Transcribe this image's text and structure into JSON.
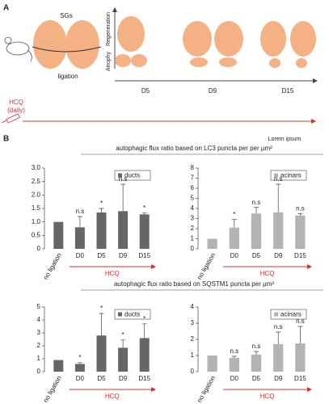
{
  "panel_a": {
    "label": "A",
    "sgs": "SGs",
    "ligation": "ligation",
    "axis_top": "Regeneration",
    "axis_bottom": "Atrophy",
    "timepoints": [
      "D5",
      "D9",
      "D15"
    ],
    "treatment": [
      "HCQ",
      "(daily)"
    ]
  },
  "panel_b": {
    "label": "B",
    "note": "Lorem ipsum",
    "row_titles": [
      "autophagic flux ratio based on LC3 puncta per per µm²",
      "autophagic flux ratio based on SQSTM1 puncta per µm²"
    ]
  },
  "chart_data": [
    {
      "type": "bar",
      "categories": [
        "no ligation",
        "D0",
        "D5",
        "D9",
        "D15"
      ],
      "series": [
        {
          "name": "ducts",
          "color": "#666666",
          "values": [
            1.0,
            0.8,
            1.35,
            1.4,
            1.28
          ],
          "errors": [
            null,
            0.4,
            0.15,
            1.0,
            0.05
          ]
        }
      ],
      "annotations": [
        null,
        "n.s",
        "*",
        "n.s",
        "*"
      ],
      "ylim": [
        0,
        3
      ],
      "yticks": [
        0,
        0.5,
        {
          "value": 1,
          "label": "1.0"
        },
        1.5,
        {
          "value": 2,
          "label": "2.0"
        },
        2.5,
        {
          "value": 3,
          "label": "3.0"
        }
      ],
      "x_annotation": "HCQ"
    },
    {
      "type": "bar",
      "categories": [
        "no ligation",
        "D0",
        "D5",
        "D9",
        "D15"
      ],
      "series": [
        {
          "name": "acinars",
          "color": "#b3b3b3",
          "values": [
            1.0,
            2.1,
            3.5,
            3.6,
            3.3
          ],
          "errors": [
            null,
            0.8,
            0.6,
            2.8,
            0.2
          ]
        }
      ],
      "annotations": [
        null,
        "*",
        "n.s",
        "n.s",
        "n.s"
      ],
      "ylim": [
        0,
        8
      ],
      "yticks": [
        0,
        1,
        2,
        3,
        4,
        5,
        6,
        7,
        8
      ],
      "x_annotation": "HCQ"
    },
    {
      "type": "bar",
      "categories": [
        "no ligation",
        "D0",
        "D5",
        "D9",
        "D15"
      ],
      "series": [
        {
          "name": "ducts",
          "color": "#666666",
          "values": [
            0.9,
            0.6,
            2.8,
            1.85,
            2.6
          ],
          "errors": [
            null,
            0.1,
            1.7,
            0.6,
            1.1
          ]
        }
      ],
      "annotations": [
        null,
        "*",
        "*",
        "*",
        "*"
      ],
      "ylim": [
        0,
        5
      ],
      "yticks": [
        0,
        1,
        2,
        3,
        4,
        5
      ],
      "x_annotation": "HCQ"
    },
    {
      "type": "bar",
      "categories": [
        "no ligation",
        "D0",
        "D5",
        "D9",
        "D15"
      ],
      "series": [
        {
          "name": "acinars",
          "color": "#b3b3b3",
          "values": [
            1.0,
            0.85,
            1.05,
            1.7,
            1.75
          ],
          "errors": [
            null,
            0.1,
            0.2,
            0.75,
            1.05
          ]
        }
      ],
      "annotations": [
        null,
        "n.s",
        "n.s",
        "n.s",
        "n.s"
      ],
      "ylim": [
        0,
        4
      ],
      "yticks": [
        0,
        1,
        2,
        3,
        4
      ],
      "x_annotation": "HCQ"
    }
  ]
}
